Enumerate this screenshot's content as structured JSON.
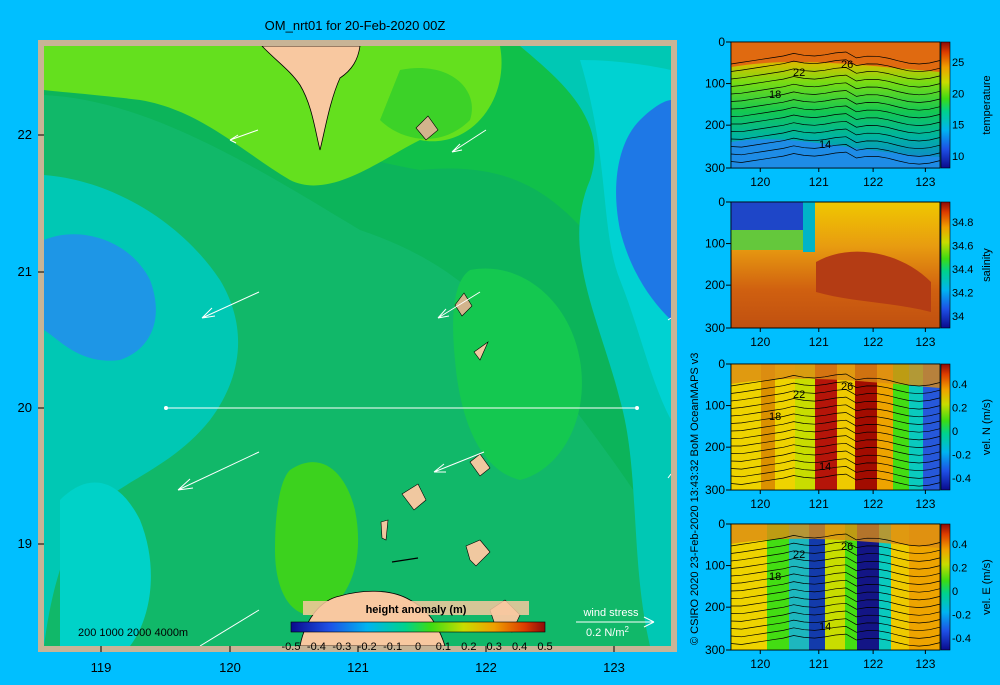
{
  "title": "OM_nrt01 for 20-Feb-2020 00Z",
  "map": {
    "lat_ticks": [
      "22",
      "21",
      "20",
      "19"
    ],
    "lon_ticks": [
      "119",
      "120",
      "121",
      "122",
      "123"
    ],
    "depth_legend": [
      "200",
      "1000",
      "2000",
      "4000m"
    ],
    "colorbar": {
      "label": "height anomaly (m)",
      "ticks": [
        "-0.5",
        "-0.4",
        "-0.3",
        "-0.2",
        "-0.1",
        "0",
        "0.1",
        "0.2",
        "0.3",
        "0.4",
        "0.5"
      ]
    },
    "wind_legend": {
      "label": "wind stress",
      "value_text": "0.2 N/m",
      "exponent": "2"
    },
    "section_line": {
      "lat": 20,
      "lon_start": 119.5,
      "lon_end": 123.2
    }
  },
  "credit": "© CSIRO 2020   23-Feb-2020 13:43:32 BoM OceanMAPS v3",
  "panels": [
    {
      "id": "temperature",
      "label": "temperature",
      "cb_ticks": [
        "25",
        "20",
        "15",
        "10"
      ],
      "contours": [
        "26",
        "22",
        "18",
        "14"
      ]
    },
    {
      "id": "salinity",
      "label": "salinity",
      "cb_ticks": [
        "34.8",
        "34.6",
        "34.4",
        "34.2",
        "34"
      ],
      "contours": []
    },
    {
      "id": "vel_n",
      "label": "vel. N (m/s)",
      "cb_ticks": [
        "0.4",
        "0.2",
        "0",
        "-0.2",
        "-0.4"
      ],
      "contours": [
        "26",
        "22",
        "18",
        "14"
      ]
    },
    {
      "id": "vel_e",
      "label": "vel. E (m/s)",
      "cb_ticks": [
        "0.4",
        "0.2",
        "0",
        "-0.2",
        "-0.4"
      ],
      "contours": [
        "26",
        "22",
        "18",
        "14"
      ]
    }
  ],
  "panel_axes": {
    "depth_ticks": [
      "0",
      "100",
      "200",
      "300"
    ],
    "lon_ticks": [
      "120",
      "121",
      "122",
      "123"
    ]
  }
}
